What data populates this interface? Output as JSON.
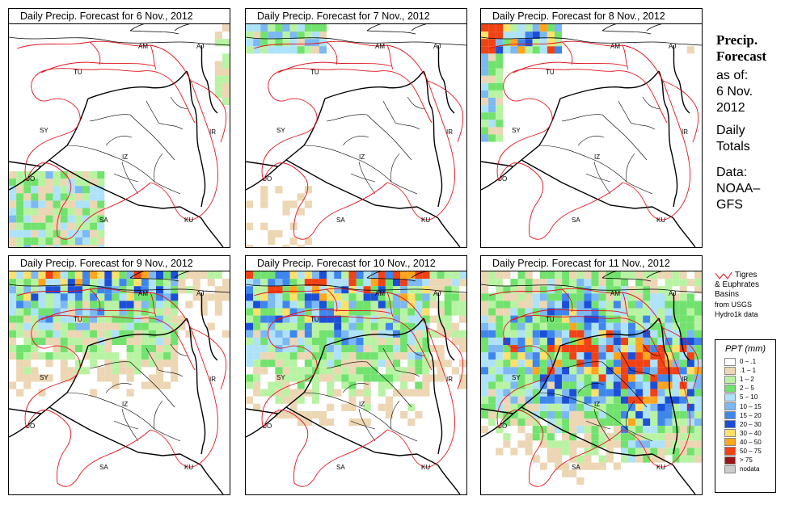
{
  "panels": [
    {
      "title": "Daily Precip. Forecast for  6 Nov., 2012"
    },
    {
      "title": "Daily Precip. Forecast for  7 Nov., 2012"
    },
    {
      "title": "Daily Precip. Forecast for  8 Nov., 2012"
    },
    {
      "title": "Daily Precip. Forecast for  9 Nov., 2012"
    },
    {
      "title": "Daily Precip. Forecast for  10 Nov., 2012"
    },
    {
      "title": "Daily Precip. Forecast for  11 Nov., 2012"
    }
  ],
  "country_labels": [
    "AM",
    "AJ",
    "TU",
    "SY",
    "IR",
    "JO",
    "SA",
    "KU",
    "IZ"
  ],
  "sidebar": {
    "heading_1": "Precip.",
    "heading_2": "Forecast",
    "asof_1": "as of:",
    "asof_2": "6 Nov.",
    "asof_3": "2012",
    "daily_1": "Daily",
    "daily_2": "Totals",
    "data_1": "Data:",
    "data_2": "NOAA–",
    "data_3": "GFS"
  },
  "basin_note": {
    "line1": "Tigres",
    "line2": "& Euphrates",
    "line3": "Basins",
    "line4": "from USGS",
    "line5": "Hydro1k data",
    "color": "#e0141e"
  },
  "legend": {
    "title": "PPT (mm)",
    "items": [
      {
        "label": "0 – .1",
        "color": "#ffffff"
      },
      {
        "label": ".1 – 1",
        "color": "#ecd6b3"
      },
      {
        "label": "1 – 2",
        "color": "#b8f3a3"
      },
      {
        "label": "2 – 5",
        "color": "#72e26e"
      },
      {
        "label": "5 – 10",
        "color": "#aee2f8"
      },
      {
        "label": "10 – 15",
        "color": "#7cb8f2"
      },
      {
        "label": "15 – 20",
        "color": "#3f86ec"
      },
      {
        "label": "20 – 30",
        "color": "#1c4fd8"
      },
      {
        "label": "30 – 40",
        "color": "#ffe06a"
      },
      {
        "label": "40 – 50",
        "color": "#ffa51e"
      },
      {
        "label": "50 – 75",
        "color": "#f04215"
      },
      {
        "label": "> 75",
        "color": "#9a1515"
      },
      {
        "label": "nodata",
        "color": "#cccccc"
      }
    ]
  }
}
